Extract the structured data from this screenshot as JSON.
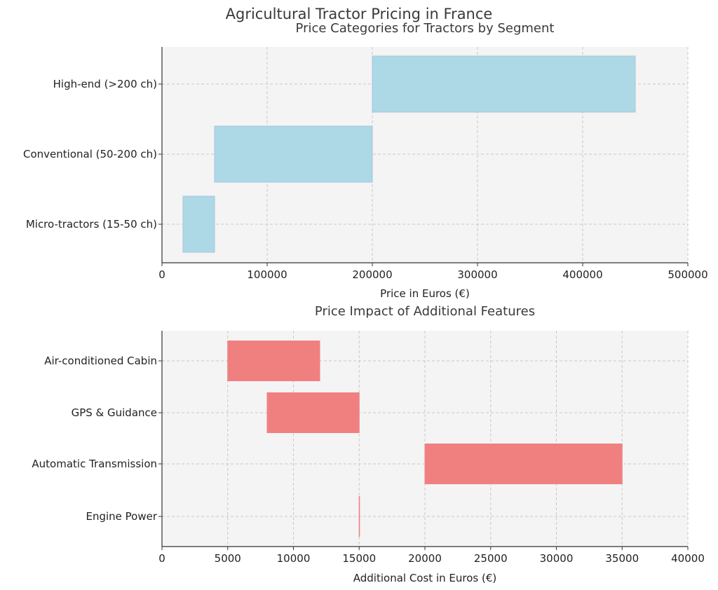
{
  "figure": {
    "title": "Agricultural Tractor Pricing in France"
  },
  "chart_data": [
    {
      "type": "bar",
      "orientation": "horizontal-range",
      "title": "Price Categories for Tractors by Segment",
      "xlabel": "Price in Euros (€)",
      "ylabel": "",
      "xlim": [
        0,
        500000
      ],
      "xticks": [
        0,
        100000,
        200000,
        300000,
        400000,
        500000
      ],
      "xtick_labels": [
        "0",
        "100000",
        "200000",
        "300000",
        "400000",
        "500000"
      ],
      "grid": true,
      "bar_color": "#add8e6",
      "bar_edge_color": "#a9c4de",
      "categories": [
        "Micro-tractors (15-50 ch)",
        "Conventional (50-200 ch)",
        "High-end (>200 ch)"
      ],
      "ranges": [
        [
          20000,
          50000
        ],
        [
          50000,
          200000
        ],
        [
          200000,
          450000
        ]
      ]
    },
    {
      "type": "bar",
      "orientation": "horizontal-range",
      "title": "Price Impact of Additional Features",
      "xlabel": "Additional Cost in Euros (€)",
      "ylabel": "",
      "xlim": [
        0,
        40000
      ],
      "xticks": [
        0,
        5000,
        10000,
        15000,
        20000,
        25000,
        30000,
        35000,
        40000
      ],
      "xtick_labels": [
        "0",
        "5000",
        "10000",
        "15000",
        "20000",
        "25000",
        "30000",
        "35000",
        "40000"
      ],
      "grid": true,
      "bar_color": "#f08080",
      "bar_edge_color": "#f08080",
      "categories": [
        "Engine Power",
        "Automatic Transmission",
        "GPS & Guidance",
        "Air-conditioned Cabin"
      ],
      "ranges": [
        [
          15000,
          15000
        ],
        [
          20000,
          35000
        ],
        [
          8000,
          15000
        ],
        [
          5000,
          12000
        ]
      ]
    }
  ]
}
